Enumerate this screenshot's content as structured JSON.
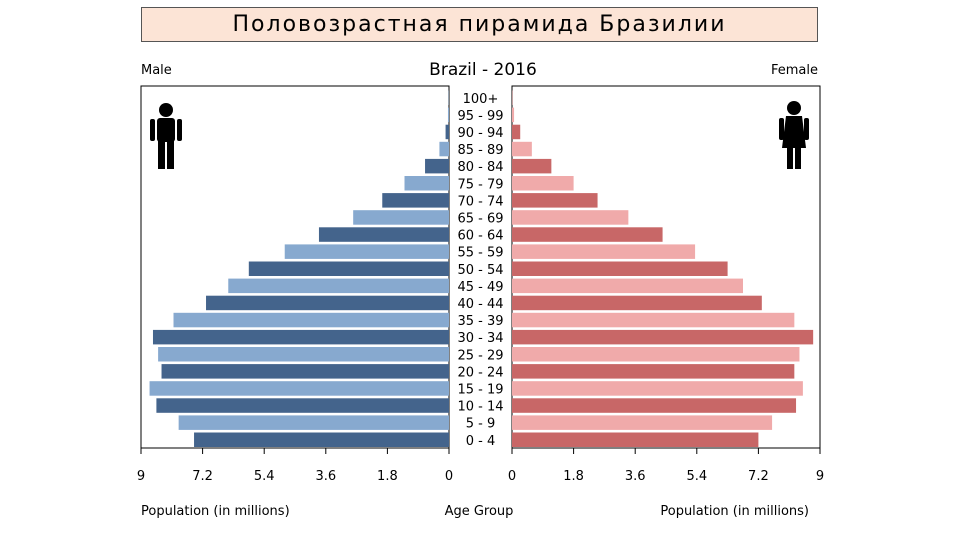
{
  "slide_title": "Половозрастная пирамида Бразилии",
  "chart_data": {
    "type": "bar",
    "orientation": "horizontal-population-pyramid",
    "title": "Brazil - 2016",
    "left_label": "Male",
    "right_label": "Female",
    "xlabel_left": "Population (in millions)",
    "xlabel_center": "Age Group",
    "xlabel_right": "Population (in millions)",
    "xlim": [
      0,
      9
    ],
    "xticks": [
      "9",
      "7.2",
      "5.4",
      "3.6",
      "1.8",
      "0"
    ],
    "xticks_right": [
      "0",
      "1.8",
      "3.6",
      "5.4",
      "7.2",
      "9"
    ],
    "categories": [
      "0 - 4",
      "5 - 9",
      "10 - 14",
      "15 - 19",
      "20 - 24",
      "25 - 29",
      "30 - 34",
      "35 - 39",
      "40 - 44",
      "45 - 49",
      "50 - 54",
      "55 - 59",
      "60 - 64",
      "65 - 69",
      "70 - 74",
      "75 - 79",
      "80 - 84",
      "85 - 89",
      "90 - 94",
      "95 - 99",
      "100+"
    ],
    "series": [
      {
        "name": "Male",
        "values": [
          7.45,
          7.9,
          8.55,
          8.75,
          8.4,
          8.5,
          8.65,
          8.05,
          7.1,
          6.45,
          5.85,
          4.8,
          3.8,
          2.8,
          1.95,
          1.3,
          0.7,
          0.28,
          0.1,
          0.03,
          0.01
        ]
      },
      {
        "name": "Female",
        "values": [
          7.2,
          7.6,
          8.3,
          8.5,
          8.25,
          8.4,
          8.8,
          8.25,
          7.3,
          6.75,
          6.3,
          5.35,
          4.4,
          3.4,
          2.5,
          1.8,
          1.15,
          0.58,
          0.24,
          0.06,
          0.01
        ]
      }
    ],
    "colors": {
      "male_dark": "#44648c",
      "male_light": "#87a9cf",
      "female_dark": "#c86767",
      "female_light": "#f0aaaa"
    },
    "icons": {
      "male": "male-person-icon",
      "female": "female-person-icon"
    }
  }
}
